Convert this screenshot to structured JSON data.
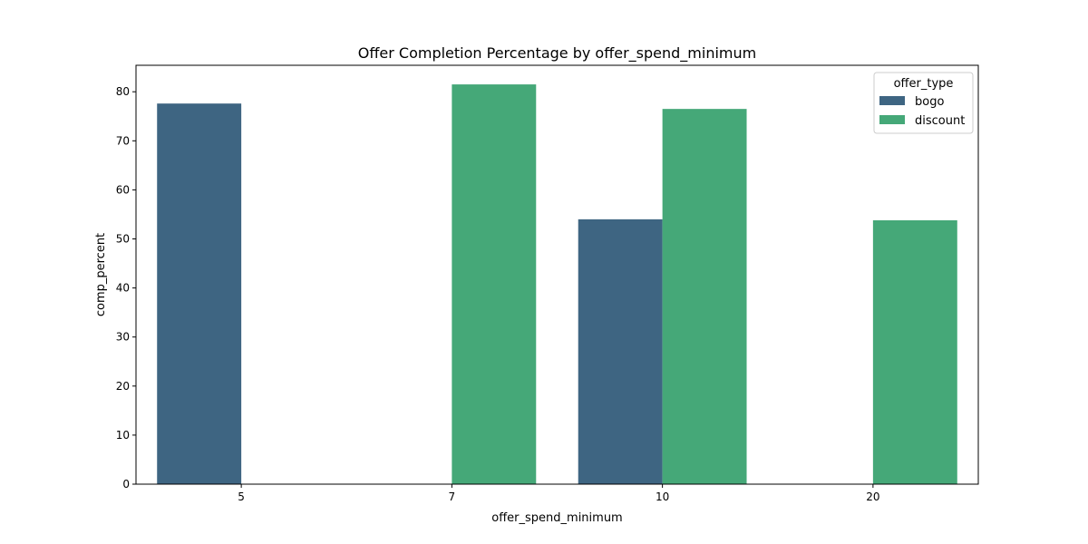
{
  "chart_data": {
    "type": "bar",
    "title": "Offer Completion Percentage by offer_spend_minimum",
    "xlabel": "offer_spend_minimum",
    "ylabel": "comp_percent",
    "categories": [
      "5",
      "7",
      "10",
      "20"
    ],
    "ylim": [
      0,
      85.4
    ],
    "yticks": [
      0,
      10,
      20,
      30,
      40,
      50,
      60,
      70,
      80
    ],
    "grid": false,
    "legend": {
      "title": "offer_type",
      "position": "top-right"
    },
    "series": [
      {
        "name": "bogo",
        "color": "#3e6582",
        "values": [
          77.6,
          null,
          54.0,
          null
        ]
      },
      {
        "name": "discount",
        "color": "#45a878",
        "values": [
          null,
          81.5,
          76.5,
          53.8
        ]
      }
    ]
  }
}
